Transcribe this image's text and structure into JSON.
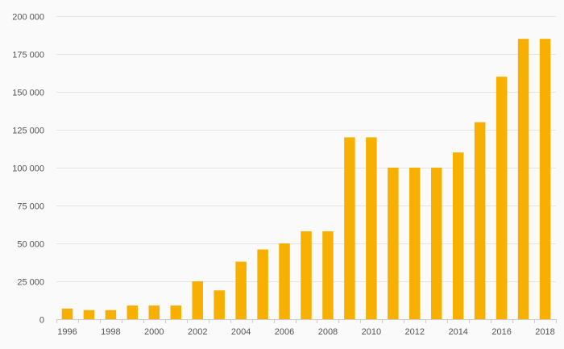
{
  "chart_data": {
    "type": "bar",
    "title": "",
    "xlabel": "",
    "ylabel": "",
    "categories": [
      "1996",
      "1997",
      "1998",
      "1999",
      "2000",
      "2001",
      "2002",
      "2003",
      "2004",
      "2005",
      "2006",
      "2007",
      "2008",
      "2009",
      "2010",
      "2011",
      "2012",
      "2013",
      "2014",
      "2015",
      "2016",
      "2017",
      "2018"
    ],
    "x_tick_labels": [
      "1996",
      "1998",
      "2000",
      "2002",
      "2004",
      "2006",
      "2008",
      "2010",
      "2012",
      "2014",
      "2016",
      "2018"
    ],
    "values": [
      7000,
      6000,
      6000,
      9000,
      9000,
      9000,
      25000,
      19000,
      38000,
      46000,
      50000,
      58000,
      58000,
      120000,
      120000,
      100000,
      100000,
      100000,
      110000,
      130000,
      160000,
      185000,
      185000
    ],
    "ylim": [
      0,
      200000
    ],
    "y_ticks": [
      0,
      25000,
      50000,
      75000,
      100000,
      125000,
      150000,
      175000,
      200000
    ],
    "y_tick_labels": [
      "0",
      "25 000",
      "50 000",
      "75 000",
      "100 000",
      "125 000",
      "150 000",
      "175 000",
      "200 000"
    ],
    "grid": "horizontal",
    "legend": "none",
    "bar_color": "#F7B000",
    "grid_color": "#e4e4e4",
    "axis_color": "#cccccc"
  }
}
